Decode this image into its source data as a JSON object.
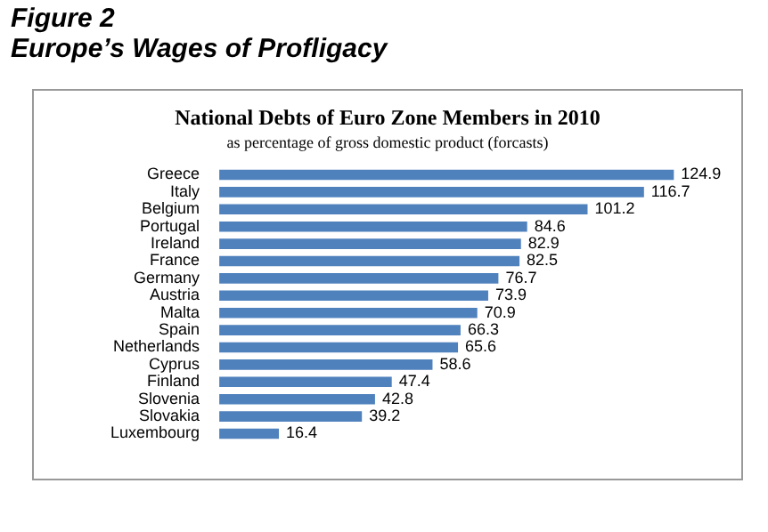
{
  "chart_data": {
    "type": "bar",
    "orientation": "horizontal",
    "title": "National Debts of Euro Zone Members in 2010",
    "subtitle": "as percentage of gross domestic product (forcasts)",
    "annotations": [
      "Figure 2",
      "Europe’s Wages of Profligacy"
    ],
    "categories": [
      "Greece",
      "Italy",
      "Belgium",
      "Portugal",
      "Ireland",
      "France",
      "Germany",
      "Austria",
      "Malta",
      "Spain",
      "Netherlands",
      "Cyprus",
      "Finland",
      "Slovenia",
      "Slovakia",
      "Luxembourg"
    ],
    "values": [
      124.9,
      116.7,
      101.2,
      84.6,
      82.9,
      82.5,
      76.7,
      73.9,
      70.9,
      66.3,
      65.6,
      58.6,
      47.4,
      42.8,
      39.2,
      16.4
    ],
    "color": "#4f81bd",
    "data_labels": true,
    "tick_labels": "y",
    "grid": false,
    "legend": false
  }
}
